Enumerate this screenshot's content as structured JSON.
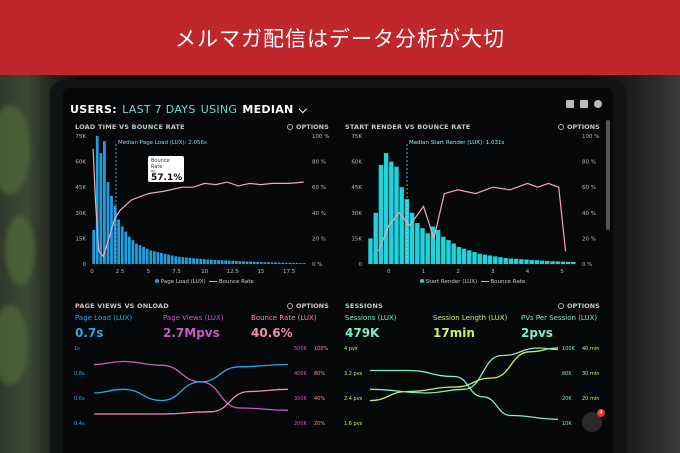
{
  "banner": {
    "title": "メルマガ配信はデータ分析が大切"
  },
  "dashboard": {
    "header": {
      "prefix": "USERS:",
      "range": "LAST 7 DAYS",
      "using": "USING",
      "metric": "MEDIAN"
    },
    "options_label": "OPTIONS",
    "panels": {
      "load_bounce": {
        "title": "LOAD TIME VS BOUNCE RATE",
        "annotation": "Median Page Load (LUX): 2.056s",
        "tooltip": {
          "label1": "Bounce Rate",
          "label2": "%",
          "value": "57.1%"
        },
        "legend": [
          "Page Load (LUX)",
          "Bounce Rate"
        ]
      },
      "render_bounce": {
        "title": "START RENDER VS BOUNCE RATE",
        "annotation": "Median Start Render (LUX): 1.031s",
        "legend": [
          "Start Render (LUX)",
          "Bounce Rate"
        ]
      },
      "views_onload": {
        "title": "PAGE VIEWS VS ONLOAD",
        "metrics": [
          {
            "label": "Page Load (LUX)",
            "value": "0.7s",
            "color": "#29a6e6"
          },
          {
            "label": "Page Views (LUX)",
            "value": "2.7Mpvs",
            "color": "#c75cc1"
          },
          {
            "label": "Bounce Rate (LUX)",
            "value": "40.6%",
            "color": "#ef8fa6"
          }
        ]
      },
      "sessions": {
        "title": "SESSIONS",
        "metrics": [
          {
            "label": "Sessions (LUX)",
            "value": "479K",
            "color": "#7cf2c4"
          },
          {
            "label": "Session Length (LUX)",
            "value": "17min",
            "color": "#c8f06a"
          },
          {
            "label": "PVs Per Session (LUX)",
            "value": "2pvs",
            "color": "#7cf2c4"
          }
        ]
      }
    },
    "chat_badge": "4"
  },
  "chart_data": [
    {
      "type": "bar",
      "title": "LOAD TIME VS BOUNCE RATE",
      "x_ticks": [
        "0",
        "2.5",
        "5",
        "7.5",
        "10",
        "12.5",
        "15",
        "17.5"
      ],
      "y_left_ticks": [
        "0",
        "15K",
        "30K",
        "45K",
        "60K",
        "75K"
      ],
      "y_right_ticks": [
        "0 %",
        "20 %",
        "40 %",
        "60 %",
        "80 %",
        "100 %"
      ],
      "ylim_left": [
        0,
        75
      ],
      "ylim_right": [
        0,
        100
      ],
      "xlim": [
        0,
        19
      ],
      "bar_color": "#1f9ee0",
      "line_color": "#f2a7b8",
      "bars": [
        20,
        75,
        65,
        72,
        48,
        40,
        34,
        26,
        22,
        19,
        16,
        14,
        12,
        11,
        10,
        9,
        8,
        7.5,
        7,
        6.5,
        6,
        5.5,
        5,
        4.5,
        4.2,
        4,
        3.8,
        3.6,
        3.4,
        3.2,
        3,
        2.8,
        2.6,
        2.5,
        2.4,
        2.3,
        2.2,
        2.1,
        2,
        1.9,
        1.8,
        1.7,
        1.6,
        1.5,
        1.4,
        1.3,
        1.2,
        1.1,
        1.0,
        1.0,
        0.9,
        0.9,
        0.8,
        0.8,
        0.7,
        0.7,
        0.6,
        0.6,
        0.5,
        0.5
      ],
      "line": [
        [
          0.1,
          90
        ],
        [
          0.3,
          50
        ],
        [
          0.6,
          10
        ],
        [
          1,
          6
        ],
        [
          1.5,
          20
        ],
        [
          2,
          35
        ],
        [
          2.5,
          42
        ],
        [
          3.5,
          50
        ],
        [
          5,
          55
        ],
        [
          6.5,
          57
        ],
        [
          8,
          60
        ],
        [
          9,
          60
        ],
        [
          10,
          63
        ],
        [
          11,
          62
        ],
        [
          12,
          64
        ],
        [
          13,
          61
        ],
        [
          14,
          63
        ],
        [
          15,
          62
        ],
        [
          16,
          63
        ],
        [
          17.5,
          63
        ],
        [
          18.8,
          64
        ]
      ]
    },
    {
      "type": "bar",
      "title": "START RENDER VS BOUNCE RATE",
      "x_ticks": [
        "0",
        "1",
        "2",
        "3",
        "4",
        "5"
      ],
      "y_left_ticks": [
        "0",
        "15K",
        "30K",
        "45K",
        "60K",
        "75K"
      ],
      "y_right_ticks": [
        "0 %",
        "20 %",
        "40 %",
        "60 %",
        "80 %",
        "100 %"
      ],
      "ylim_left": [
        0,
        75
      ],
      "ylim_right": [
        0,
        100
      ],
      "xlim": [
        -0.6,
        5.4
      ],
      "bar_color": "#1fd2dc",
      "line_color": "#f2a7b8",
      "bars": [
        15,
        30,
        58,
        65,
        60,
        57,
        45,
        38,
        30,
        24,
        21,
        18,
        22,
        20,
        16,
        14,
        12,
        10,
        9,
        8,
        7,
        6,
        5.5,
        5,
        4.5,
        4,
        3.5,
        3.2,
        3,
        2.8,
        2.6,
        2.4,
        2.2,
        2,
        1.8,
        1.6,
        1.5,
        1.4,
        1.3,
        1.2
      ],
      "line": [
        [
          -0.3,
          10
        ],
        [
          0,
          30
        ],
        [
          0.3,
          40
        ],
        [
          0.6,
          30
        ],
        [
          1,
          45
        ],
        [
          1.3,
          20
        ],
        [
          1.6,
          55
        ],
        [
          2,
          58
        ],
        [
          2.5,
          55
        ],
        [
          3,
          60
        ],
        [
          3.5,
          58
        ],
        [
          4,
          63
        ],
        [
          4.3,
          60
        ],
        [
          4.6,
          63
        ],
        [
          4.9,
          60
        ],
        [
          5.1,
          10
        ]
      ]
    },
    {
      "type": "line",
      "title": "PAGE VIEWS VS ONLOAD",
      "y_left_ticks": [
        "0.4s",
        "0.6s",
        "0.8s",
        "1s"
      ],
      "y_mid_ticks": [
        "200K",
        "300K",
        "400K",
        "500K"
      ],
      "y_right_ticks": [
        "20%",
        "40%",
        "80%",
        "100%"
      ],
      "series": [
        {
          "color": "#c75cc1",
          "points": [
            [
              0,
              0.78
            ],
            [
              0.15,
              0.82
            ],
            [
              0.35,
              0.77
            ],
            [
              0.55,
              0.55
            ],
            [
              0.75,
              0.2
            ],
            [
              1,
              0.17
            ]
          ]
        },
        {
          "color": "#29a6e6",
          "points": [
            [
              0,
              0.4
            ],
            [
              0.15,
              0.45
            ],
            [
              0.35,
              0.3
            ],
            [
              0.55,
              0.55
            ],
            [
              0.75,
              0.75
            ],
            [
              1,
              0.78
            ]
          ]
        },
        {
          "color": "#ef8fa6",
          "points": [
            [
              0,
              0.12
            ],
            [
              0.35,
              0.12
            ],
            [
              0.6,
              0.15
            ],
            [
              0.8,
              0.42
            ],
            [
              1,
              0.45
            ]
          ]
        }
      ]
    },
    {
      "type": "line",
      "title": "SESSIONS",
      "y_left_ticks": [
        "1.6 pvs",
        "2.4 pvs",
        "3.2 pvs",
        "4 pvs"
      ],
      "y_right_ticks": [
        "10K",
        "20K",
        "80K",
        "100K"
      ],
      "y_right2_ticks": [
        "10 min",
        "20 min",
        "30 min",
        "40 min"
      ],
      "series": [
        {
          "color": "#c8f06a",
          "points": [
            [
              0,
              0.3
            ],
            [
              0.2,
              0.42
            ],
            [
              0.45,
              0.48
            ],
            [
              0.65,
              0.6
            ],
            [
              0.85,
              0.95
            ],
            [
              1,
              1.0
            ]
          ]
        },
        {
          "color": "#7cf2c4",
          "points": [
            [
              0,
              0.7
            ],
            [
              0.2,
              0.7
            ],
            [
              0.45,
              0.62
            ],
            [
              0.6,
              0.35
            ],
            [
              0.75,
              0.1
            ],
            [
              1,
              0.05
            ]
          ]
        },
        {
          "color": "#7cf2c4",
          "points": [
            [
              0,
              0.45
            ],
            [
              0.3,
              0.4
            ],
            [
              0.5,
              0.45
            ],
            [
              0.7,
              0.9
            ],
            [
              0.9,
              1.0
            ],
            [
              1,
              0.98
            ]
          ]
        }
      ]
    }
  ]
}
